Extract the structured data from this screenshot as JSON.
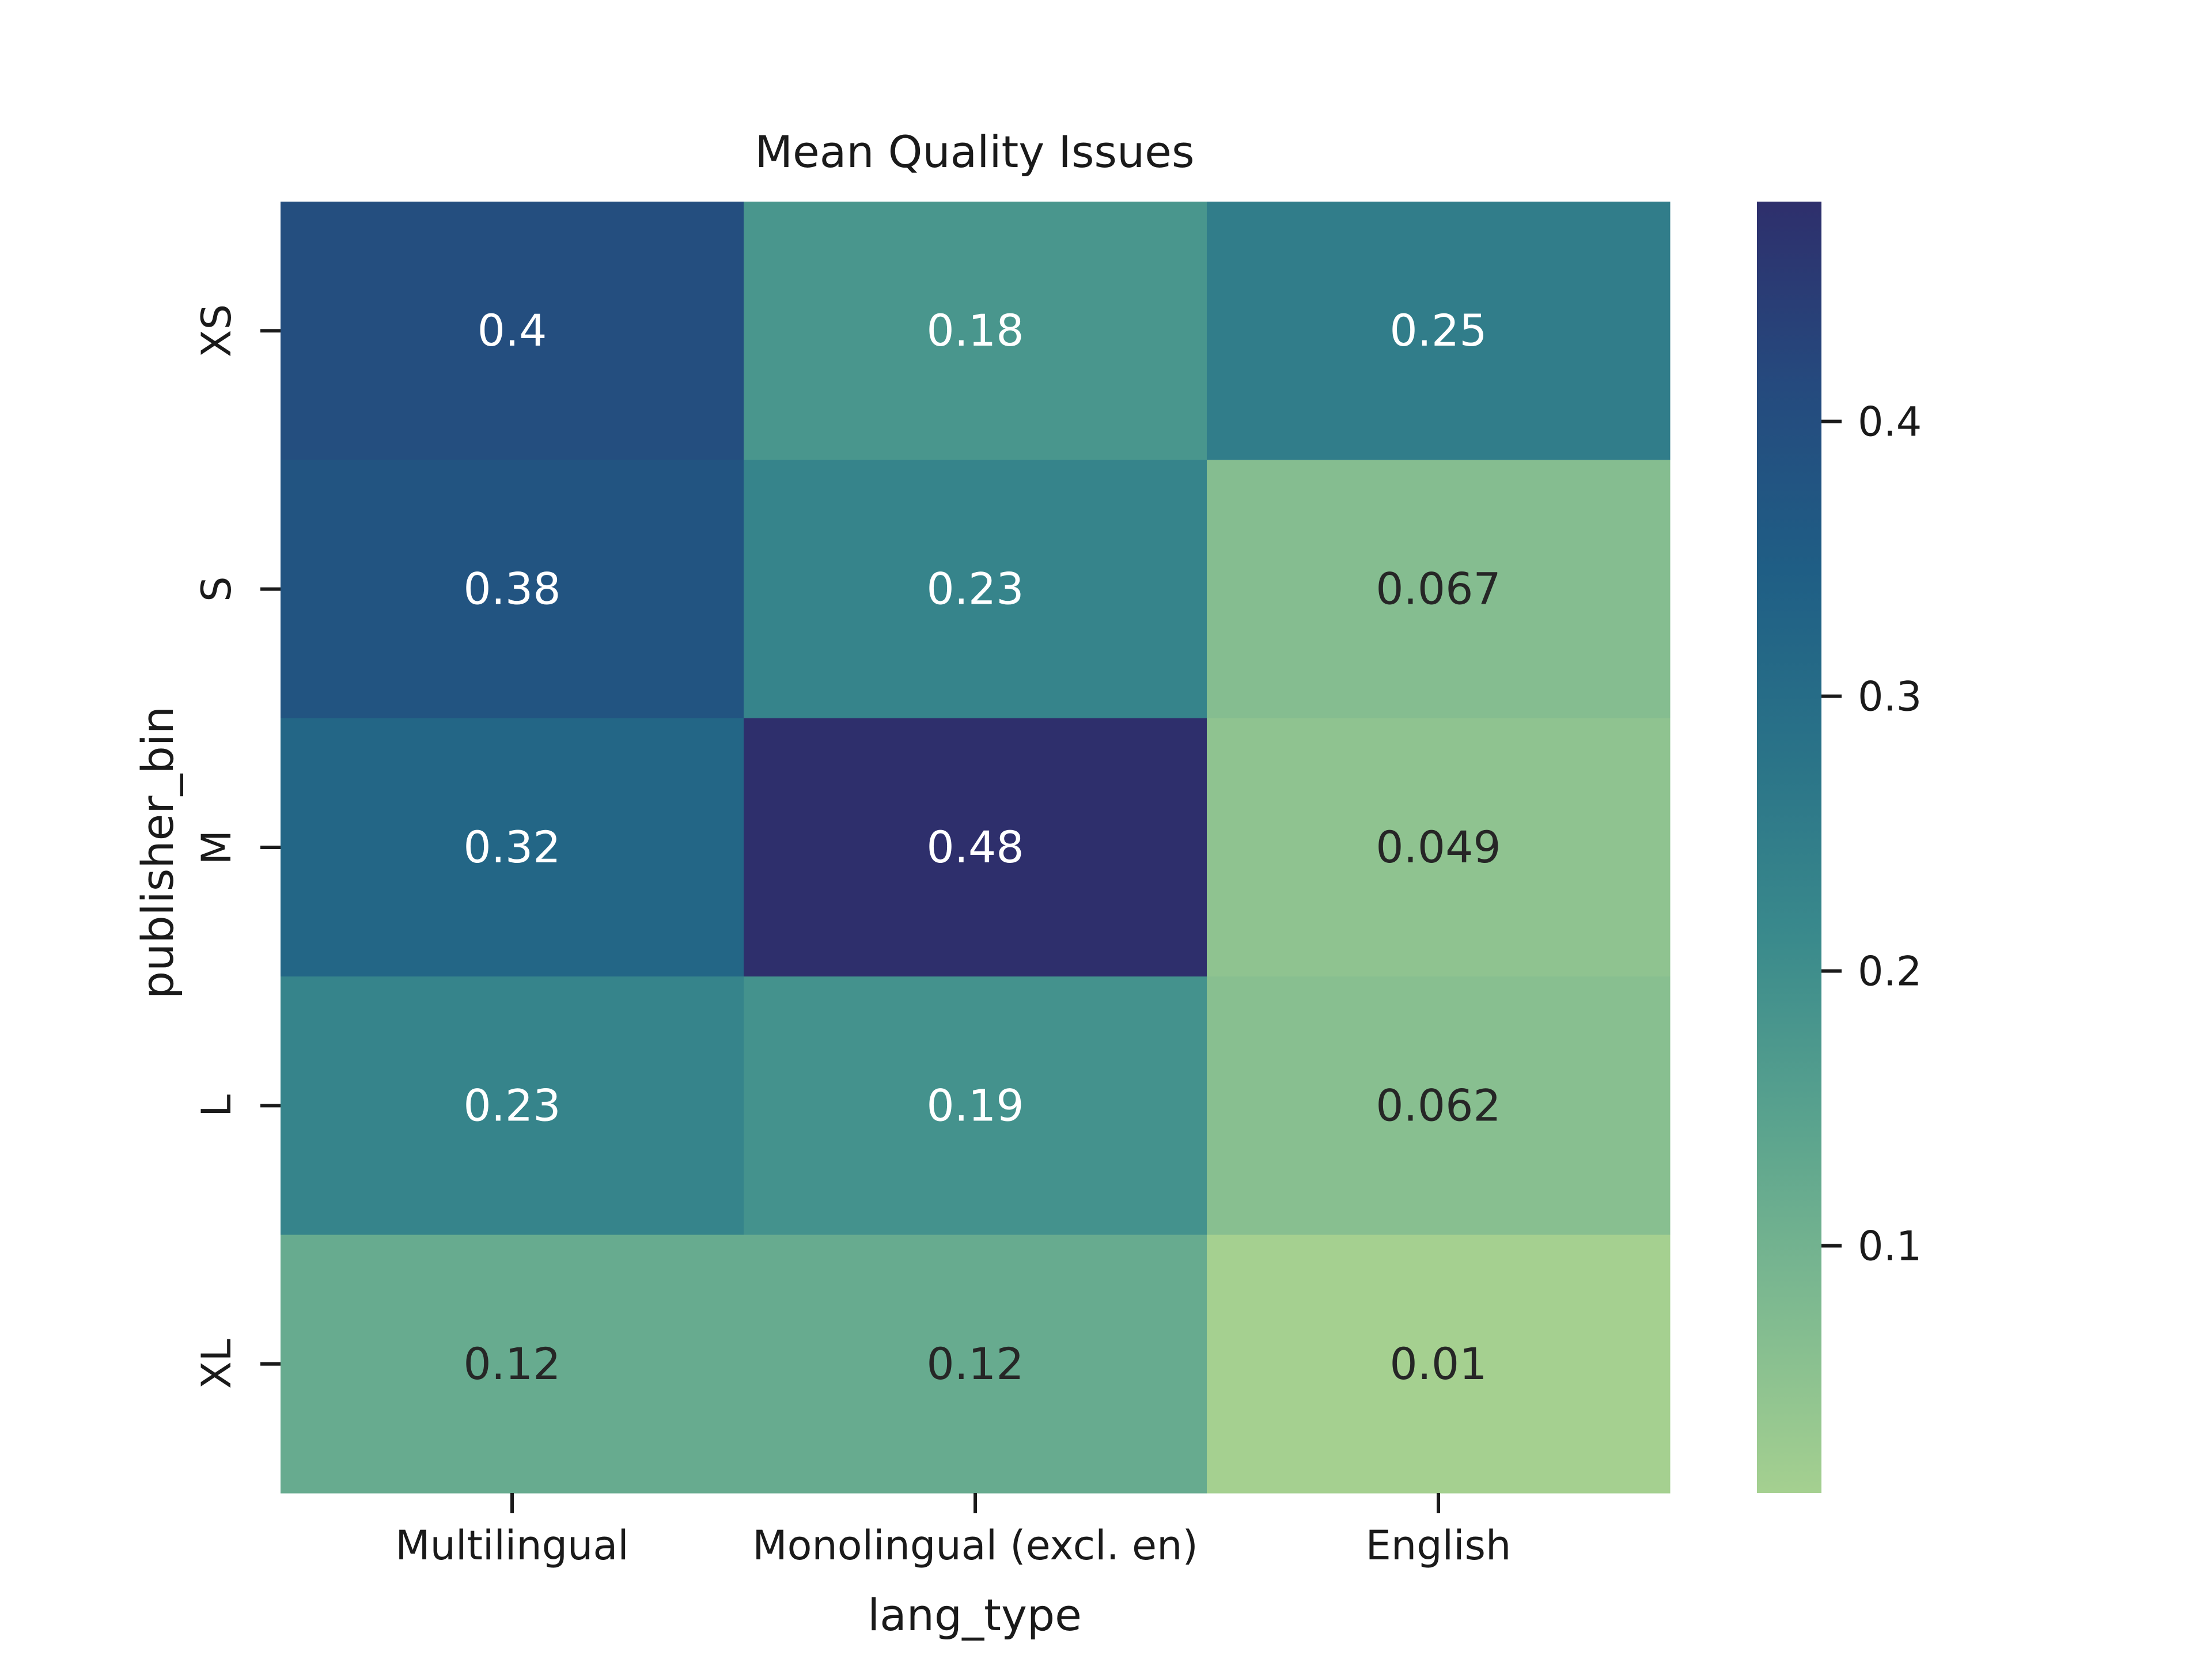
{
  "chart_data": {
    "type": "heatmap",
    "title": "Mean Quality Issues",
    "xlabel": "lang_type",
    "ylabel": "publisher_bin",
    "x_categories": [
      "Multilingual",
      "Monolingual (excl. en)",
      "English"
    ],
    "y_categories": [
      "XS",
      "S",
      "M",
      "L",
      "XL"
    ],
    "values": [
      [
        0.4,
        0.18,
        0.25
      ],
      [
        0.38,
        0.23,
        0.067
      ],
      [
        0.32,
        0.48,
        0.049
      ],
      [
        0.23,
        0.19,
        0.062
      ],
      [
        0.12,
        0.12,
        0.01
      ]
    ],
    "value_labels": [
      [
        "0.4",
        "0.18",
        "0.25"
      ],
      [
        "0.38",
        "0.23",
        "0.067"
      ],
      [
        "0.32",
        "0.48",
        "0.049"
      ],
      [
        "0.23",
        "0.19",
        "0.062"
      ],
      [
        "0.12",
        "0.12",
        "0.01"
      ]
    ],
    "colorbar": {
      "range": [
        0.01,
        0.48
      ],
      "ticks": [
        0.1,
        0.2,
        0.3,
        0.4
      ],
      "tick_labels": [
        "0.1",
        "0.2",
        "0.3",
        "0.4"
      ],
      "colormap": [
        "#a5d090",
        "#7fba90",
        "#5aa38e",
        "#3a8a8c",
        "#2a7388",
        "#1f5e85",
        "#254a7e",
        "#2e2f6c"
      ]
    },
    "grid": false
  }
}
